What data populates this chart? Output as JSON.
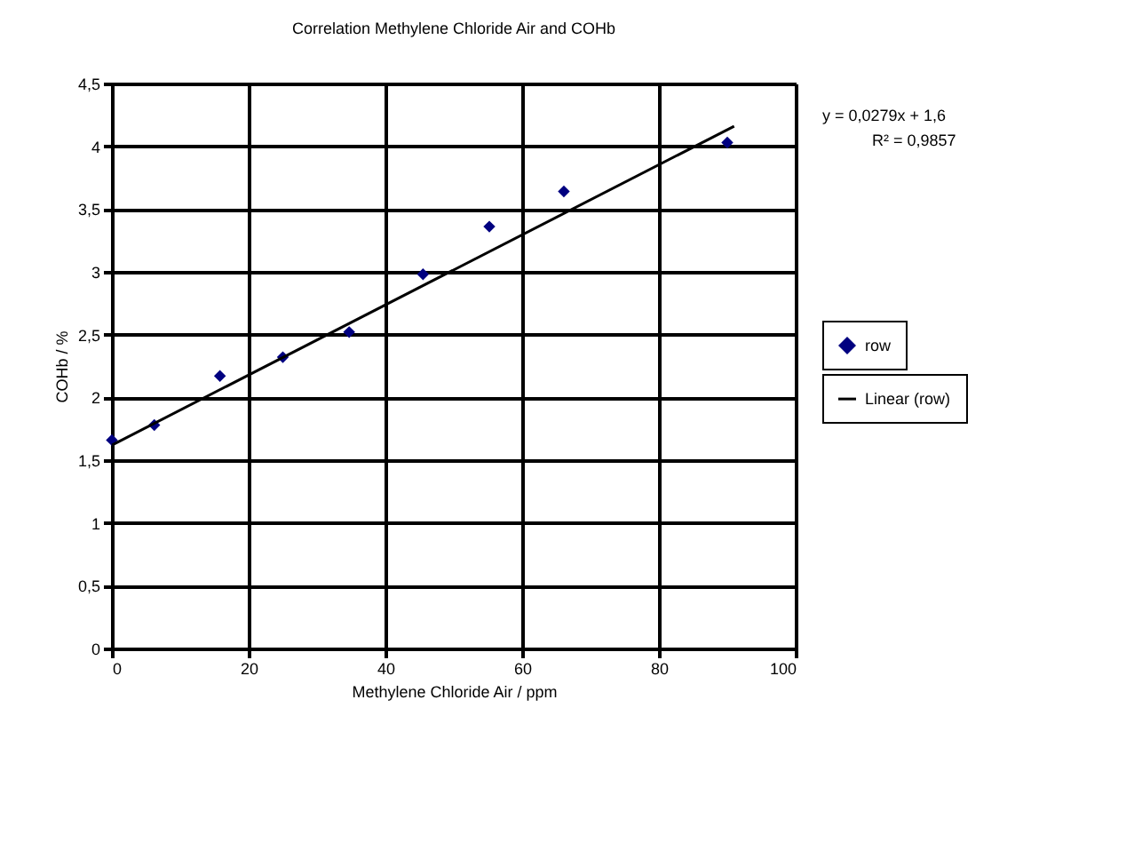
{
  "chart_data": {
    "type": "scatter",
    "title": "Correlation Methylene Chloride Air and COHb",
    "xlabel": "Methylene Chloride Air / ppm",
    "ylabel": "COHb / %",
    "series": [
      {
        "name": "row",
        "color": "#000080",
        "marker": "diamond",
        "x": [
          0,
          6.2,
          15.8,
          25,
          34.7,
          45.5,
          55.2,
          66.1,
          90
        ],
        "values": [
          1.66,
          1.78,
          2.17,
          2.32,
          2.52,
          2.98,
          3.36,
          3.64,
          4.03
        ]
      },
      {
        "name": "Linear (row)",
        "type": "line",
        "color": "#000000",
        "line_style": "solid",
        "x": [
          0,
          91
        ],
        "values": [
          1.62,
          4.16
        ]
      }
    ],
    "xlim": [
      0,
      100
    ],
    "xticks": [
      0,
      20,
      40,
      60,
      80,
      100
    ],
    "ylim": [
      0,
      4.5
    ],
    "yticks": [
      0,
      {
        "value": 0.5,
        "label": "0,5"
      },
      1,
      {
        "value": 1.5,
        "label": "1,5"
      },
      2,
      {
        "value": 2.5,
        "label": "2,5"
      },
      3,
      {
        "value": 3.5,
        "label": "3,5"
      },
      4,
      {
        "value": 4.5,
        "label": "4,5"
      }
    ],
    "grid": true,
    "legend": "right",
    "annotations": [
      "y = 0,0279x + 1,6",
      "R² = 0,9857"
    ]
  }
}
